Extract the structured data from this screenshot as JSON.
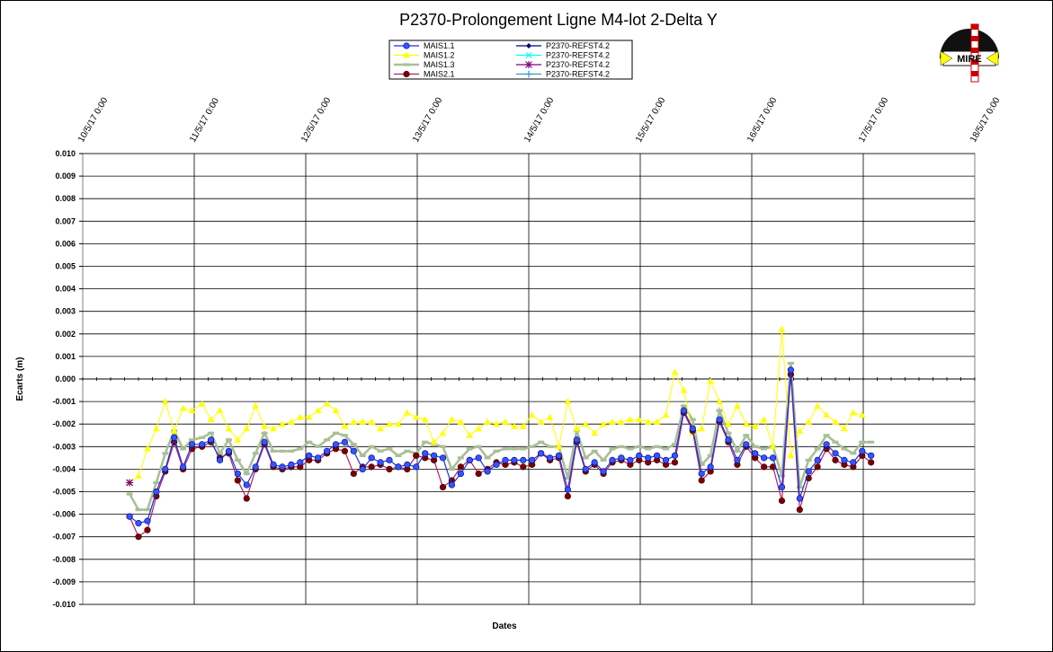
{
  "chart_data": {
    "type": "line",
    "title": "P2370-Prolongement  Ligne  M4-lot  2-Delta  Y",
    "xlabel": "Dates",
    "ylabel": "Ecarts (m)",
    "xlim": [
      "10/5/17 0:00",
      "18/5/17 0:00"
    ],
    "ylim": [
      -0.01,
      0.01
    ],
    "y_ticks": [
      "0.010",
      "0.009",
      "0.008",
      "0.007",
      "0.006",
      "0.005",
      "0.004",
      "0.003",
      "0.002",
      "0.001",
      "0.000",
      "-0.001",
      "-0.002",
      "-0.003",
      "-0.004",
      "-0.005",
      "-0.006",
      "-0.007",
      "-0.008",
      "-0.009",
      "-0.010"
    ],
    "x_ticks": [
      "10/5/17 0:00",
      "11/5/17 0:00",
      "12/5/17 0:00",
      "13/5/17 0:00",
      "14/5/17 0:00",
      "15/5/17 0:00",
      "16/5/17 0:00",
      "17/5/17 0:00",
      "18/5/17 0:00"
    ],
    "grid": true,
    "legend_position": "top-center",
    "x_days": [
      0.42,
      0.5,
      0.58,
      0.66,
      0.74,
      0.82,
      0.9,
      0.98,
      1.07,
      1.15,
      1.23,
      1.31,
      1.39,
      1.47,
      1.55,
      1.63,
      1.71,
      1.79,
      1.87,
      1.95,
      2.03,
      2.11,
      2.19,
      2.27,
      2.35,
      2.43,
      2.51,
      2.59,
      2.67,
      2.75,
      2.83,
      2.91,
      2.99,
      3.07,
      3.15,
      3.23,
      3.31,
      3.39,
      3.47,
      3.55,
      3.63,
      3.71,
      3.79,
      3.87,
      3.95,
      4.03,
      4.11,
      4.19,
      4.27,
      4.35,
      4.43,
      4.51,
      4.59,
      4.67,
      4.75,
      4.83,
      4.91,
      4.99,
      5.07,
      5.15,
      5.23,
      5.31,
      5.39,
      5.47,
      5.55,
      5.63,
      5.71,
      5.79,
      5.87,
      5.95,
      6.03,
      6.11,
      6.19,
      6.27,
      6.35,
      6.43,
      6.51,
      6.59,
      6.67,
      6.75,
      6.83,
      6.91,
      6.99,
      7.07,
      7.15,
      7.23,
      7.31,
      7.39
    ],
    "series": [
      {
        "name": "MAIS1.1",
        "color": "#3355ff",
        "marker": "circle",
        "values": [
          -0.0061,
          -0.0064,
          -0.0063,
          -0.005,
          -0.004,
          -0.0026,
          -0.0039,
          -0.0029,
          -0.0029,
          -0.0027,
          -0.0036,
          -0.0032,
          -0.0042,
          -0.0047,
          -0.0039,
          -0.0028,
          -0.0038,
          -0.0039,
          -0.0038,
          -0.0037,
          -0.0034,
          -0.0035,
          -0.0032,
          -0.0029,
          -0.0028,
          -0.0032,
          -0.004,
          -0.0035,
          -0.0037,
          -0.0036,
          -0.0039,
          -0.0038,
          -0.0039,
          -0.0033,
          -0.0034,
          -0.0035,
          -0.0047,
          -0.0042,
          -0.0036,
          -0.0035,
          -0.0041,
          -0.0038,
          -0.0036,
          -0.0036,
          -0.0036,
          -0.0036,
          -0.0033,
          -0.0035,
          -0.0034,
          -0.0049,
          -0.0027,
          -0.004,
          -0.0037,
          -0.0041,
          -0.0036,
          -0.0035,
          -0.0036,
          -0.0034,
          -0.0035,
          -0.0034,
          -0.0036,
          -0.0034,
          -0.0014,
          -0.0022,
          -0.0042,
          -0.0039,
          -0.0018,
          -0.0027,
          -0.0036,
          -0.0029,
          -0.0033,
          -0.0035,
          -0.0035,
          -0.0048,
          0.0004,
          -0.0053,
          -0.0041,
          -0.0036,
          -0.0029,
          -0.0033,
          -0.0036,
          -0.0037,
          -0.0032,
          -0.0034
        ]
      },
      {
        "name": "MAIS1.2",
        "color": "#ffff00",
        "marker": "triangle",
        "values": [
          -0.0046,
          -0.0043,
          -0.0031,
          -0.0022,
          -0.001,
          -0.0023,
          -0.0013,
          -0.0014,
          -0.0011,
          -0.0018,
          -0.0014,
          -0.0022,
          -0.0027,
          -0.0022,
          -0.0012,
          -0.0021,
          -0.0022,
          -0.002,
          -0.0019,
          -0.0017,
          -0.0017,
          -0.0014,
          -0.0011,
          -0.0014,
          -0.0021,
          -0.0019,
          -0.0019,
          -0.0019,
          -0.0022,
          -0.002,
          -0.002,
          -0.0015,
          -0.0017,
          -0.0018,
          -0.0028,
          -0.0024,
          -0.0018,
          -0.0019,
          -0.0025,
          -0.0022,
          -0.0019,
          -0.002,
          -0.0019,
          -0.0021,
          -0.0021,
          -0.0016,
          -0.0019,
          -0.0017,
          -0.003,
          -0.001,
          -0.0022,
          -0.002,
          -0.0024,
          -0.002,
          -0.0019,
          -0.0019,
          -0.0018,
          -0.0018,
          -0.0019,
          -0.0019,
          -0.0016,
          0.0003,
          -0.0005,
          -0.0024,
          -0.0022,
          -0.0001,
          -0.001,
          -0.002,
          -0.0012,
          -0.002,
          -0.0021,
          -0.0018,
          -0.003,
          0.0022,
          -0.0034,
          -0.0023,
          -0.0019,
          -0.0012,
          -0.0016,
          -0.0019,
          -0.0022,
          -0.0015,
          -0.0016
        ]
      },
      {
        "name": "MAIS1.3",
        "color": "#a9bf96",
        "marker": "dash",
        "values": [
          -0.0051,
          -0.0058,
          -0.0058,
          -0.0046,
          -0.0033,
          -0.0023,
          -0.0031,
          -0.0027,
          -0.0026,
          -0.0024,
          -0.0033,
          -0.0027,
          -0.0036,
          -0.0042,
          -0.0033,
          -0.0024,
          -0.0032,
          -0.0032,
          -0.0032,
          -0.0031,
          -0.0028,
          -0.003,
          -0.0027,
          -0.0024,
          -0.0025,
          -0.0029,
          -0.0034,
          -0.003,
          -0.0032,
          -0.0031,
          -0.0034,
          -0.0032,
          -0.0033,
          -0.0028,
          -0.0029,
          -0.003,
          -0.004,
          -0.0035,
          -0.0031,
          -0.003,
          -0.0035,
          -0.0032,
          -0.0031,
          -0.0031,
          -0.0031,
          -0.003,
          -0.0028,
          -0.003,
          -0.003,
          -0.0044,
          -0.0023,
          -0.0035,
          -0.0032,
          -0.0036,
          -0.0031,
          -0.003,
          -0.0031,
          -0.003,
          -0.0031,
          -0.003,
          -0.0031,
          -0.0029,
          -0.0012,
          -0.0018,
          -0.0038,
          -0.0034,
          -0.0014,
          -0.0024,
          -0.0032,
          -0.0025,
          -0.003,
          -0.0031,
          -0.003,
          -0.0043,
          0.0007,
          -0.0048,
          -0.0036,
          -0.0031,
          -0.0025,
          -0.0028,
          -0.0031,
          -0.0033,
          -0.0028,
          -0.0028
        ]
      },
      {
        "name": "MAIS2.1",
        "color": "#7a0000",
        "marker": "circle",
        "values": [
          -0.0061,
          -0.007,
          -0.0067,
          -0.0052,
          -0.0041,
          -0.0028,
          -0.004,
          -0.0031,
          -0.003,
          -0.0028,
          -0.0035,
          -0.0033,
          -0.0045,
          -0.0053,
          -0.004,
          -0.0029,
          -0.0039,
          -0.004,
          -0.0039,
          -0.0039,
          -0.0036,
          -0.0036,
          -0.0033,
          -0.0031,
          -0.0032,
          -0.0042,
          -0.0039,
          -0.0039,
          -0.0038,
          -0.004,
          -0.0039,
          -0.004,
          -0.0034,
          -0.0035,
          -0.0036,
          -0.0048,
          -0.0045,
          -0.0039,
          -0.0036,
          -0.0042,
          -0.004,
          -0.0037,
          -0.0038,
          -0.0037,
          -0.0039,
          -0.0038,
          -0.0033,
          -0.0036,
          -0.0035,
          -0.0052,
          -0.0028,
          -0.0041,
          -0.0038,
          -0.0042,
          -0.0037,
          -0.0036,
          -0.0038,
          -0.0036,
          -0.0037,
          -0.0036,
          -0.0038,
          -0.0037,
          -0.0015,
          -0.0023,
          -0.0045,
          -0.0041,
          -0.0019,
          -0.0028,
          -0.0038,
          -0.003,
          -0.0035,
          -0.0039,
          -0.0039,
          -0.0054,
          0.0002,
          -0.0058,
          -0.0044,
          -0.0039,
          -0.0031,
          -0.0036,
          -0.0038,
          -0.0039,
          -0.0034,
          -0.0037
        ]
      },
      {
        "name": "P2370-REFST4.2",
        "color": "#000080",
        "marker": "diamond",
        "values": []
      },
      {
        "name": "P2370-REFST4.2",
        "color": "#00ffff",
        "marker": "x",
        "values": []
      },
      {
        "name": "P2370-REFST4.2",
        "color": "#800080",
        "marker": "star",
        "values": [
          -0.0046
        ]
      },
      {
        "name": "P2370-REFST4.2",
        "color": "#3399cc",
        "marker": "plus",
        "values": []
      }
    ]
  },
  "logo": {
    "text": "MIRE",
    "accent": "#cc0000",
    "arrow": "#ffff00"
  }
}
